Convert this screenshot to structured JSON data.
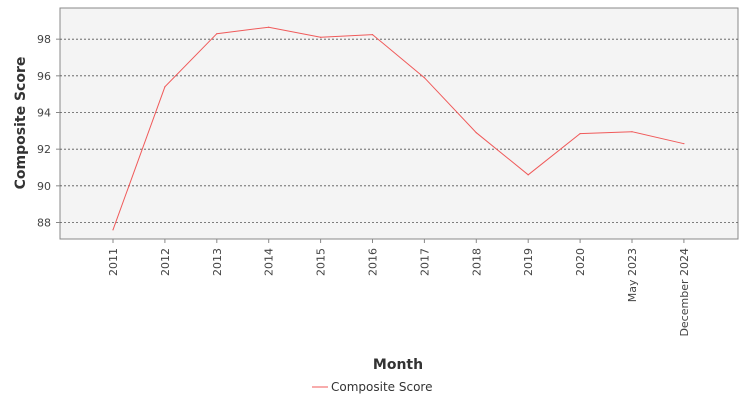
{
  "chart_data": {
    "type": "line",
    "title": "",
    "xlabel": "Month",
    "ylabel": "Composite Score",
    "categories": [
      "2011",
      "2012",
      "2013",
      "2014",
      "2015",
      "2016",
      "2017",
      "2018",
      "2019",
      "2020",
      "May 2023",
      "December 2024"
    ],
    "series": [
      {
        "name": "Composite Score",
        "color": "#f05a5a",
        "values": [
          87.6,
          95.4,
          98.3,
          98.65,
          98.1,
          98.25,
          95.9,
          92.9,
          90.6,
          92.85,
          92.95,
          92.3
        ]
      }
    ],
    "ylim": [
      87.1,
      99.7
    ],
    "yticks": [
      88,
      90,
      92,
      94,
      96,
      98
    ],
    "grid": true,
    "legend_position": "bottom-center",
    "colors": {
      "plot_background": "#f4f4f4",
      "grid": "#555555",
      "axis": "#888888"
    }
  }
}
